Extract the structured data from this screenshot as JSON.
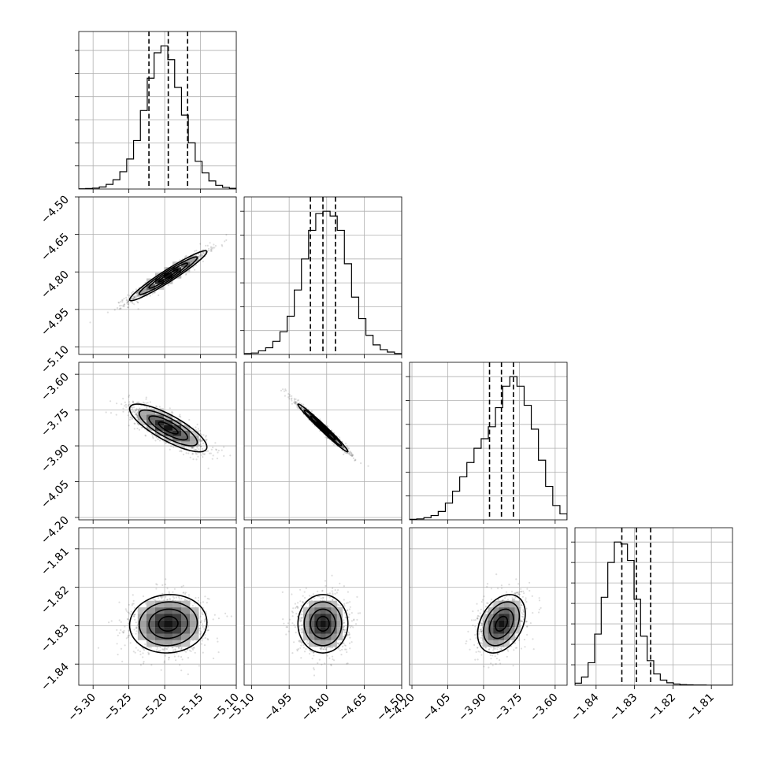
{
  "chart_data": {
    "type": "corner",
    "grid": true,
    "params": [
      {
        "median": -5.195,
        "q16": -5.222,
        "q84": -5.168,
        "sigma": 0.027,
        "range": [
          -5.32,
          -5.1
        ],
        "ticks": [
          -5.3,
          -5.25,
          -5.2,
          -5.15,
          -5.1
        ],
        "tick_labels": [
          "−5.30",
          "−5.25",
          "−5.20",
          "−5.15",
          "−5.10"
        ]
      },
      {
        "median": -4.815,
        "q16": -4.865,
        "q84": -4.765,
        "sigma": 0.05,
        "range": [
          -5.13,
          -4.5
        ],
        "ticks": [
          -4.5,
          -4.65,
          -4.8,
          -4.95,
          -5.1
        ],
        "tick_labels": [
          "−4.50",
          "−4.65",
          "−4.80",
          "−4.95",
          "−5.10"
        ]
      },
      {
        "median": -3.825,
        "q16": -3.875,
        "q84": -3.775,
        "sigma": 0.05,
        "range": [
          -4.21,
          -3.55
        ],
        "ticks": [
          -4.2,
          -4.05,
          -3.9,
          -3.75,
          -3.6
        ],
        "tick_labels": [
          "−4.20",
          "−4.05",
          "−3.90",
          "−3.75",
          "−3.60"
        ]
      },
      {
        "median": -1.8295,
        "q16": -1.8333,
        "q84": -1.8258,
        "sigma": 0.0038,
        "range": [
          -1.8455,
          -1.8045
        ],
        "ticks": [
          -1.84,
          -1.83,
          -1.82,
          -1.81
        ],
        "tick_labels": [
          "−1.84",
          "−1.83",
          "−1.82",
          "−1.81"
        ]
      }
    ],
    "correlations": {
      "1-0": 0.96,
      "2-0": -0.8,
      "2-1": -0.985,
      "3-0": 0.05,
      "3-1": 0.0,
      "3-2": 0.35
    },
    "series": [
      {
        "param": 0,
        "x": [
          -5.32,
          -5.31,
          -5.3,
          -5.29,
          -5.28,
          -5.27,
          -5.26,
          -5.25,
          -5.24,
          -5.23,
          -5.22,
          -5.21,
          -5.2,
          -5.19,
          -5.18,
          -5.17,
          -5.16,
          -5.15,
          -5.14,
          -5.13,
          -5.12,
          -5.11,
          -5.1
        ],
        "values": [
          1,
          2,
          4,
          9,
          20,
          40,
          75,
          130,
          210,
          340,
          480,
          590,
          620,
          560,
          440,
          320,
          200,
          120,
          70,
          35,
          16,
          7,
          3
        ]
      },
      {
        "param": 1,
        "x": [
          -5.13,
          -5.1,
          -5.07,
          -5.04,
          -5.01,
          -4.98,
          -4.95,
          -4.92,
          -4.89,
          -4.86,
          -4.83,
          -4.8,
          -4.77,
          -4.74,
          -4.71,
          -4.68,
          -4.65,
          -4.62,
          -4.59,
          -4.56,
          -4.53,
          -4.5
        ],
        "values": [
          4,
          6,
          15,
          28,
          55,
          95,
          160,
          270,
          400,
          520,
          590,
          600,
          580,
          520,
          380,
          240,
          150,
          80,
          40,
          20,
          10,
          4
        ]
      },
      {
        "param": 2,
        "x": [
          -4.21,
          -4.18,
          -4.15,
          -4.12,
          -4.09,
          -4.06,
          -4.03,
          -4.0,
          -3.97,
          -3.94,
          -3.91,
          -3.88,
          -3.85,
          -3.82,
          -3.79,
          -3.76,
          -3.73,
          -3.7,
          -3.67,
          -3.64,
          -3.61,
          -3.58
        ],
        "values": [
          2,
          4,
          9,
          18,
          35,
          70,
          120,
          180,
          240,
          300,
          340,
          390,
          470,
          560,
          600,
          560,
          480,
          380,
          250,
          140,
          60,
          25
        ]
      },
      {
        "param": 3,
        "x": [
          -1.8455,
          -1.8438,
          -1.8421,
          -1.8404,
          -1.8387,
          -1.837,
          -1.8353,
          -1.8336,
          -1.8319,
          -1.8302,
          -1.8285,
          -1.8268,
          -1.8251,
          -1.8234,
          -1.8217,
          -1.82,
          -1.8183,
          -1.8166,
          -1.8149,
          -1.8132,
          -1.8115,
          -1.8098,
          -1.8081,
          -1.8064
        ],
        "values": [
          10,
          40,
          110,
          250,
          430,
          600,
          700,
          690,
          610,
          420,
          240,
          120,
          55,
          25,
          12,
          6,
          3,
          2,
          1,
          1,
          0,
          0,
          0,
          0
        ]
      }
    ]
  }
}
